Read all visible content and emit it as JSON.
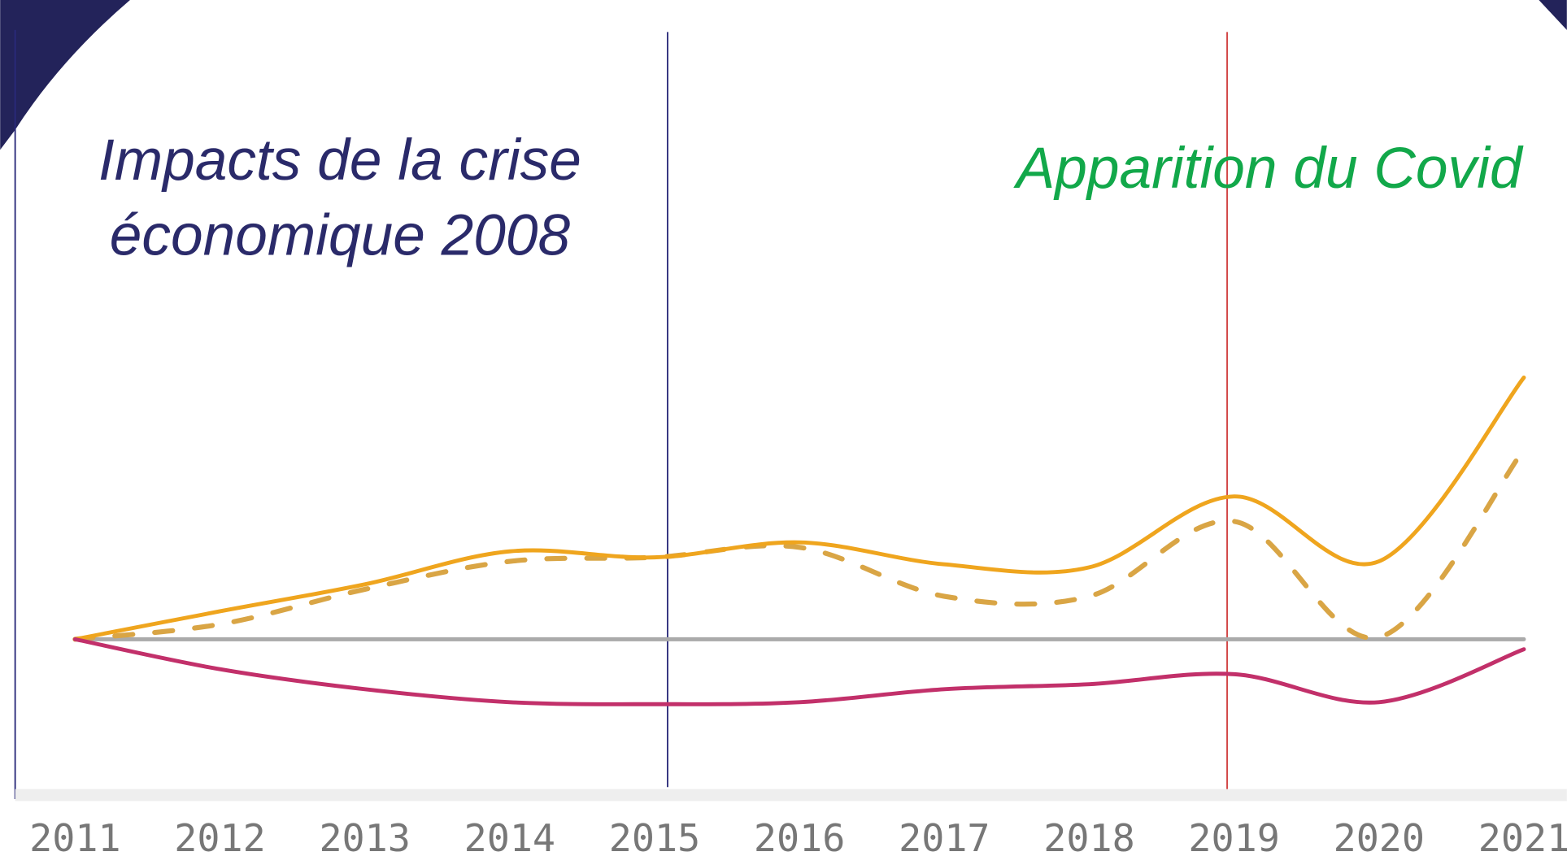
{
  "chart_data": {
    "type": "line",
    "categories": [
      "2011",
      "2012",
      "2013",
      "2014",
      "2015",
      "2016",
      "2017",
      "2018",
      "2019",
      "2020",
      "2021"
    ],
    "series": [
      {
        "color": "#aaaaaa",
        "dash": false,
        "values": [
          0,
          0,
          0,
          0,
          0,
          0,
          0,
          0,
          0,
          0,
          0
        ]
      },
      {
        "color": "#d9a545",
        "dash": true,
        "values": [
          0,
          15,
          50,
          78,
          82,
          92,
          43,
          43,
          118,
          2,
          190
        ]
      },
      {
        "color": "#efa51e",
        "dash": false,
        "values": [
          0,
          28,
          55,
          88,
          82,
          97,
          75,
          72,
          143,
          78,
          262
        ]
      },
      {
        "color": "#c2306a",
        "dash": false,
        "values": [
          0,
          -30,
          -50,
          -63,
          -65,
          -63,
          -50,
          -45,
          -35,
          -63,
          -10
        ]
      }
    ],
    "ylim": [
      -150,
      610
    ],
    "annotations": [
      "Impacts de la crise",
      "économique 2008",
      "Apparition du Covid"
    ]
  }
}
